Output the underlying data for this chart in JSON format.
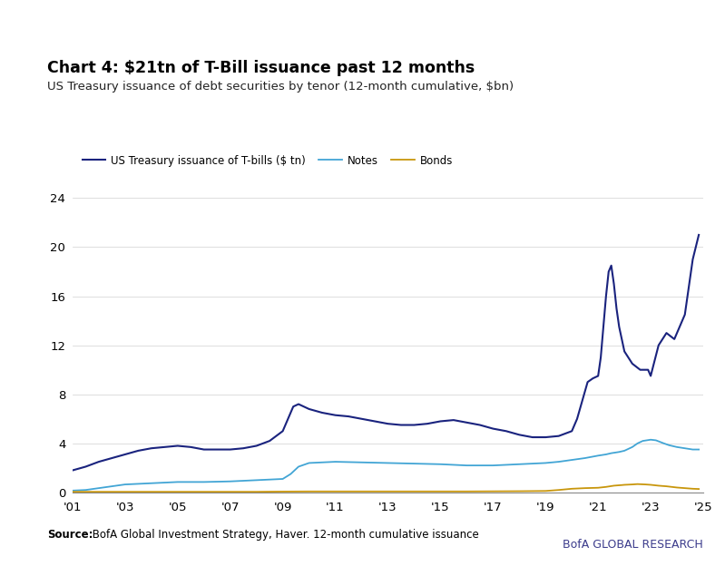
{
  "title_bold": "Chart 4: $21tn of T-Bill issuance past 12 months",
  "subtitle": "US Treasury issuance of debt securities by tenor (12-month cumulative, $bn)",
  "source_bold": "Source:",
  "source_rest": " BofA Global Investment Strategy, Haver. 12-month cumulative issuance",
  "branding": "BofA GLOBAL RESEARCH",
  "tbills_color": "#1a237e",
  "notes_color": "#42a5d5",
  "bonds_color": "#c8960c",
  "tbills_label": "US Treasury issuance of T-bills ($ tn)",
  "notes_label": "Notes",
  "bonds_label": "Bonds",
  "ylim": [
    0,
    24
  ],
  "yticks": [
    0,
    4,
    8,
    12,
    16,
    20,
    24
  ],
  "background_color": "#ffffff",
  "blue_bar_color": "#1a5fac",
  "tbills": {
    "years": [
      2001.0,
      2001.5,
      2002.0,
      2002.5,
      2003.0,
      2003.5,
      2004.0,
      2004.5,
      2005.0,
      2005.5,
      2006.0,
      2006.5,
      2007.0,
      2007.5,
      2008.0,
      2008.5,
      2009.0,
      2009.2,
      2009.4,
      2009.6,
      2009.8,
      2010.0,
      2010.5,
      2011.0,
      2011.5,
      2012.0,
      2012.5,
      2013.0,
      2013.5,
      2014.0,
      2014.5,
      2015.0,
      2015.5,
      2016.0,
      2016.5,
      2017.0,
      2017.5,
      2018.0,
      2018.5,
      2019.0,
      2019.5,
      2020.0,
      2020.2,
      2020.4,
      2020.6,
      2020.8,
      2021.0,
      2021.1,
      2021.2,
      2021.3,
      2021.4,
      2021.5,
      2021.6,
      2021.7,
      2021.8,
      2022.0,
      2022.3,
      2022.6,
      2022.9,
      2023.0,
      2023.3,
      2023.6,
      2023.9,
      2024.0,
      2024.3,
      2024.6,
      2024.83
    ],
    "values": [
      1.8,
      2.1,
      2.5,
      2.8,
      3.1,
      3.4,
      3.6,
      3.7,
      3.8,
      3.7,
      3.5,
      3.5,
      3.5,
      3.6,
      3.8,
      4.2,
      5.0,
      6.0,
      7.0,
      7.2,
      7.0,
      6.8,
      6.5,
      6.3,
      6.2,
      6.0,
      5.8,
      5.6,
      5.5,
      5.5,
      5.6,
      5.8,
      5.9,
      5.7,
      5.5,
      5.2,
      5.0,
      4.7,
      4.5,
      4.5,
      4.6,
      5.0,
      6.0,
      7.5,
      9.0,
      9.3,
      9.5,
      11.0,
      13.5,
      16.0,
      18.0,
      18.5,
      17.0,
      15.0,
      13.5,
      11.5,
      10.5,
      10.0,
      10.0,
      9.5,
      12.0,
      13.0,
      12.5,
      13.0,
      14.5,
      19.0,
      21.0
    ]
  },
  "notes": {
    "years": [
      2001.0,
      2001.5,
      2002.0,
      2002.5,
      2003.0,
      2004.0,
      2005.0,
      2006.0,
      2007.0,
      2008.0,
      2008.5,
      2009.0,
      2009.3,
      2009.6,
      2010.0,
      2011.0,
      2012.0,
      2013.0,
      2014.0,
      2015.0,
      2016.0,
      2017.0,
      2018.0,
      2019.0,
      2019.5,
      2020.0,
      2020.5,
      2021.0,
      2021.3,
      2021.5,
      2021.8,
      2022.0,
      2022.3,
      2022.5,
      2022.7,
      2023.0,
      2023.2,
      2023.5,
      2023.7,
      2024.0,
      2024.3,
      2024.6,
      2024.83
    ],
    "values": [
      0.15,
      0.2,
      0.35,
      0.5,
      0.65,
      0.75,
      0.85,
      0.85,
      0.9,
      1.0,
      1.05,
      1.1,
      1.5,
      2.1,
      2.4,
      2.5,
      2.45,
      2.4,
      2.35,
      2.3,
      2.2,
      2.2,
      2.3,
      2.4,
      2.5,
      2.65,
      2.8,
      3.0,
      3.1,
      3.2,
      3.3,
      3.4,
      3.7,
      4.0,
      4.2,
      4.3,
      4.25,
      4.0,
      3.85,
      3.7,
      3.6,
      3.5,
      3.5
    ]
  },
  "bonds": {
    "years": [
      2001.0,
      2002.0,
      2003.0,
      2004.0,
      2005.0,
      2006.0,
      2007.0,
      2008.0,
      2009.0,
      2010.0,
      2011.0,
      2012.0,
      2013.0,
      2014.0,
      2015.0,
      2016.0,
      2017.0,
      2018.0,
      2019.0,
      2019.5,
      2020.0,
      2020.5,
      2021.0,
      2021.3,
      2021.6,
      2021.9,
      2022.0,
      2022.3,
      2022.5,
      2022.8,
      2023.0,
      2023.3,
      2023.6,
      2024.0,
      2024.3,
      2024.6,
      2024.83
    ],
    "values": [
      0.05,
      0.05,
      0.05,
      0.05,
      0.05,
      0.05,
      0.05,
      0.05,
      0.07,
      0.08,
      0.08,
      0.08,
      0.08,
      0.08,
      0.08,
      0.08,
      0.09,
      0.1,
      0.12,
      0.2,
      0.3,
      0.35,
      0.38,
      0.45,
      0.55,
      0.6,
      0.62,
      0.65,
      0.68,
      0.65,
      0.62,
      0.55,
      0.5,
      0.4,
      0.35,
      0.3,
      0.28
    ]
  }
}
